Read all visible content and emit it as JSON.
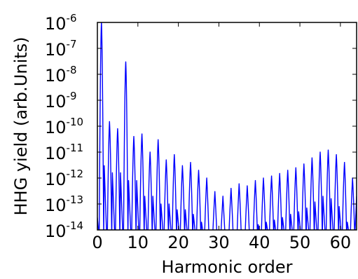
{
  "chart_data": {
    "type": "line",
    "title": "",
    "xlabel": "Harmonic order",
    "ylabel": "HHG yield (arb.Units)",
    "xlim": [
      0,
      64
    ],
    "ylim": [
      1e-14,
      1e-06
    ],
    "yscale": "log",
    "grid": false,
    "legend": "none",
    "x_ticks": [
      0,
      10,
      20,
      30,
      40,
      50,
      60
    ],
    "y_ticks": [
      {
        "base": "10",
        "exp": "-6"
      },
      {
        "base": "10",
        "exp": "-7"
      },
      {
        "base": "10",
        "exp": "-8"
      },
      {
        "base": "10",
        "exp": "-9"
      },
      {
        "base": "10",
        "exp": "-10"
      },
      {
        "base": "10",
        "exp": "-11"
      },
      {
        "base": "10",
        "exp": "-12"
      },
      {
        "base": "10",
        "exp": "-13"
      },
      {
        "base": "10",
        "exp": "-14"
      }
    ],
    "series": [
      {
        "color": "#0000ff",
        "peaks": [
          {
            "x": 1,
            "y": 1e-06
          },
          {
            "x": 3,
            "y": 1.5e-10
          },
          {
            "x": 5,
            "y": 8e-11
          },
          {
            "x": 7,
            "y": 3e-08
          },
          {
            "x": 9,
            "y": 4e-11
          },
          {
            "x": 11,
            "y": 5e-11
          },
          {
            "x": 13,
            "y": 1e-11
          },
          {
            "x": 15,
            "y": 3e-11
          },
          {
            "x": 17,
            "y": 5e-12
          },
          {
            "x": 19,
            "y": 8e-12
          },
          {
            "x": 21,
            "y": 3e-12
          },
          {
            "x": 23,
            "y": 4e-12
          },
          {
            "x": 25,
            "y": 2e-12
          },
          {
            "x": 27,
            "y": 1e-12
          },
          {
            "x": 29,
            "y": 3e-13
          },
          {
            "x": 31,
            "y": 2e-13
          },
          {
            "x": 33,
            "y": 4e-13
          },
          {
            "x": 35,
            "y": 6e-13
          },
          {
            "x": 37,
            "y": 5e-13
          },
          {
            "x": 39,
            "y": 8e-13
          },
          {
            "x": 41,
            "y": 1e-12
          },
          {
            "x": 43,
            "y": 1.2e-12
          },
          {
            "x": 45,
            "y": 1.5e-12
          },
          {
            "x": 47,
            "y": 2e-12
          },
          {
            "x": 49,
            "y": 2.5e-12
          },
          {
            "x": 51,
            "y": 3.5e-12
          },
          {
            "x": 53,
            "y": 6e-12
          },
          {
            "x": 55,
            "y": 1e-11
          },
          {
            "x": 57,
            "y": 1.2e-11
          },
          {
            "x": 59,
            "y": 8e-12
          },
          {
            "x": 61,
            "y": 4e-12
          },
          {
            "x": 63,
            "y": 1e-12
          }
        ]
      }
    ]
  }
}
